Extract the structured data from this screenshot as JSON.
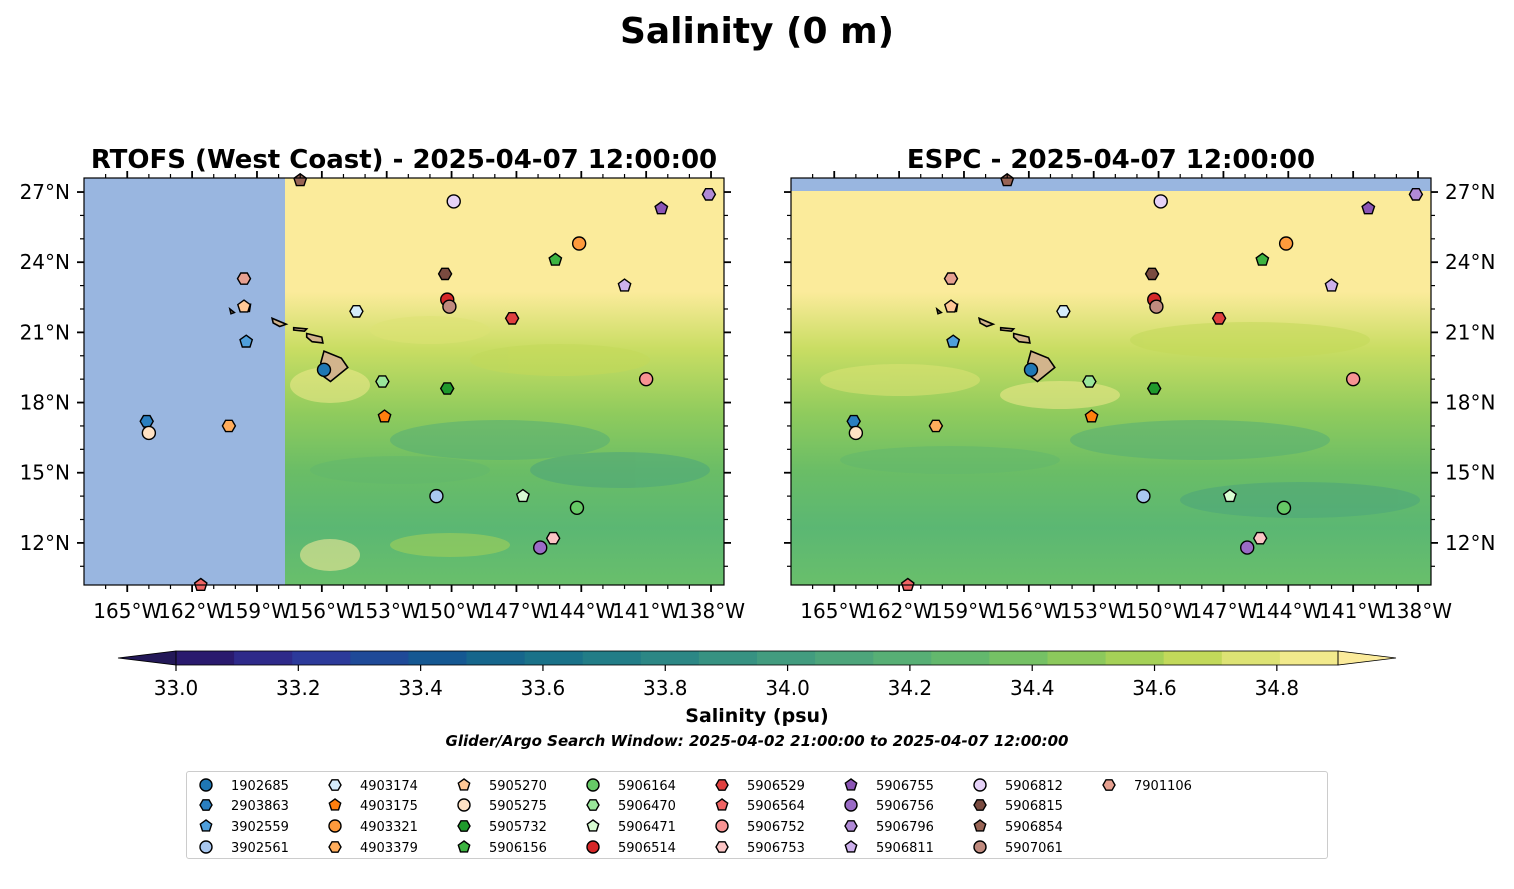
{
  "figure": {
    "suptitle": "Salinity (0 m)",
    "colorbar": {
      "label": "Salinity (psu)",
      "ticks": [
        "33.0",
        "33.2",
        "33.4",
        "33.6",
        "33.8",
        "34.0",
        "34.2",
        "34.4",
        "34.6",
        "34.8"
      ],
      "levels": [
        33.0,
        33.1,
        33.2,
        33.3,
        33.4,
        33.5,
        33.6,
        33.7,
        33.8,
        33.9,
        34.0,
        34.1,
        34.2,
        34.3,
        34.4,
        34.5,
        34.6,
        34.7,
        34.8,
        34.9
      ],
      "colors": [
        "#2a1a6e",
        "#2e2a8a",
        "#2c3a9a",
        "#1f4a98",
        "#155892",
        "#16668c",
        "#1a7289",
        "#227d87",
        "#2c8785",
        "#379282",
        "#429c7f",
        "#4da57b",
        "#57af75",
        "#63b86d",
        "#75c165",
        "#8cc95c",
        "#a5d157",
        "#c2d95a",
        "#dde374",
        "#f2ea8c"
      ],
      "under_color": "#231858",
      "over_color": "#fbeb9b"
    },
    "search_window": "Glider/Argo Search Window: 2025-04-02 21:00:00 to 2025-04-07 12:00:00"
  },
  "chart_data": [
    {
      "type": "scatter",
      "title": "RTOFS (West Coast) - 2025-04-07 12:00:00",
      "xlim": [
        -167,
        -137.4
      ],
      "ylim": [
        10.2,
        27.6
      ],
      "x_ticks": [
        "165°W",
        "162°W",
        "159°W",
        "156°W",
        "153°W",
        "150°W",
        "147°W",
        "144°W",
        "141°W",
        "138°W"
      ],
      "y_ticks": [
        "12°N",
        "15°N",
        "18°N",
        "21°N",
        "24°N",
        "27°N"
      ],
      "no_data_color": "#99b6e0",
      "no_data_west_of": -157.7,
      "points": [
        {
          "id": "1902685",
          "lon": -155.9,
          "lat": 19.4
        },
        {
          "id": "2903863",
          "lon": -164.1,
          "lat": 17.2
        },
        {
          "id": "3902559",
          "lon": -159.5,
          "lat": 20.6
        },
        {
          "id": "3902561",
          "lon": -150.7,
          "lat": 14.0
        },
        {
          "id": "4903174",
          "lon": -154.4,
          "lat": 21.9
        },
        {
          "id": "4903175",
          "lon": -153.1,
          "lat": 17.4
        },
        {
          "id": "4903321",
          "lon": -144.1,
          "lat": 24.8
        },
        {
          "id": "4903379",
          "lon": -160.3,
          "lat": 17.0
        },
        {
          "id": "5905270",
          "lon": -159.6,
          "lat": 22.1
        },
        {
          "id": "5905275",
          "lon": -164.0,
          "lat": 16.7
        },
        {
          "id": "5905732",
          "lon": -150.2,
          "lat": 18.6
        },
        {
          "id": "5906156",
          "lon": -145.2,
          "lat": 24.1
        },
        {
          "id": "5906164",
          "lon": -144.2,
          "lat": 13.5
        },
        {
          "id": "5906470",
          "lon": -153.2,
          "lat": 18.9
        },
        {
          "id": "5906471",
          "lon": -146.7,
          "lat": 14.0
        },
        {
          "id": "5906514",
          "lon": -150.2,
          "lat": 22.4
        },
        {
          "id": "5906529",
          "lon": -147.2,
          "lat": 21.6
        },
        {
          "id": "5906564",
          "lon": -161.6,
          "lat": 10.2
        },
        {
          "id": "5906752",
          "lon": -141.0,
          "lat": 19.0
        },
        {
          "id": "5906753",
          "lon": -145.3,
          "lat": 12.2
        },
        {
          "id": "5906755",
          "lon": -140.3,
          "lat": 26.3
        },
        {
          "id": "5906756",
          "lon": -145.9,
          "lat": 11.8
        },
        {
          "id": "5906796",
          "lon": -138.1,
          "lat": 26.9
        },
        {
          "id": "5906811",
          "lon": -142.0,
          "lat": 23.0
        },
        {
          "id": "5906812",
          "lon": -149.9,
          "lat": 26.6
        },
        {
          "id": "5906815",
          "lon": -150.3,
          "lat": 23.5
        },
        {
          "id": "5906854",
          "lon": -157.0,
          "lat": 27.5
        },
        {
          "id": "5907061",
          "lon": -150.1,
          "lat": 22.1
        },
        {
          "id": "7901106",
          "lon": -159.6,
          "lat": 23.3
        }
      ]
    },
    {
      "type": "scatter",
      "title": "ESPC - 2025-04-07 12:00:00",
      "xlim": [
        -167,
        -137.4
      ],
      "ylim": [
        10.2,
        27.6
      ],
      "x_ticks": [
        "165°W",
        "162°W",
        "159°W",
        "156°W",
        "153°W",
        "150°W",
        "147°W",
        "144°W",
        "141°W",
        "138°W"
      ],
      "y_ticks": [
        "12°N",
        "15°N",
        "18°N",
        "21°N",
        "24°N",
        "27°N"
      ],
      "no_data_color": "#99b6e0",
      "no_data_north_of": 27.1,
      "same_points_as_first": true
    }
  ],
  "legend": {
    "items": [
      {
        "id": "1902685",
        "marker": "circle",
        "color": "#1f77b4"
      },
      {
        "id": "2903863",
        "marker": "hexagon",
        "color": "#2a7fc0"
      },
      {
        "id": "3902559",
        "marker": "pentagon",
        "color": "#4f9fdb"
      },
      {
        "id": "3902561",
        "marker": "circle",
        "color": "#a9c8f0"
      },
      {
        "id": "4903174",
        "marker": "hexagon",
        "color": "#d5ecfb"
      },
      {
        "id": "4903175",
        "marker": "pentagon",
        "color": "#ff7f0e"
      },
      {
        "id": "4903321",
        "marker": "circle",
        "color": "#ff9a3c"
      },
      {
        "id": "4903379",
        "marker": "hexagon",
        "color": "#ffad5c"
      },
      {
        "id": "5905270",
        "marker": "pentagon",
        "color": "#ffc896"
      },
      {
        "id": "5905275",
        "marker": "circle",
        "color": "#ffe2c4"
      },
      {
        "id": "5905732",
        "marker": "hexagon",
        "color": "#1f9a2c"
      },
      {
        "id": "5906156",
        "marker": "pentagon",
        "color": "#3db441"
      },
      {
        "id": "5906164",
        "marker": "circle",
        "color": "#66c966"
      },
      {
        "id": "5906470",
        "marker": "hexagon",
        "color": "#9ae69a"
      },
      {
        "id": "5906471",
        "marker": "pentagon",
        "color": "#d8fcd2"
      },
      {
        "id": "5906514",
        "marker": "circle",
        "color": "#d62728"
      },
      {
        "id": "5906529",
        "marker": "hexagon",
        "color": "#e0403f"
      },
      {
        "id": "5906564",
        "marker": "pentagon",
        "color": "#f06464"
      },
      {
        "id": "5906752",
        "marker": "circle",
        "color": "#f79393"
      },
      {
        "id": "5906753",
        "marker": "hexagon",
        "color": "#fcc5c5"
      },
      {
        "id": "5906755",
        "marker": "pentagon",
        "color": "#8b55b5"
      },
      {
        "id": "5906756",
        "marker": "circle",
        "color": "#9a6bc6"
      },
      {
        "id": "5906796",
        "marker": "hexagon",
        "color": "#b08ad6"
      },
      {
        "id": "5906811",
        "marker": "pentagon",
        "color": "#cdb0ec"
      },
      {
        "id": "5906812",
        "marker": "circle",
        "color": "#e6d2f8"
      },
      {
        "id": "5906815",
        "marker": "hexagon",
        "color": "#7a4b40"
      },
      {
        "id": "5906854",
        "marker": "pentagon",
        "color": "#986455"
      },
      {
        "id": "5907061",
        "marker": "circle",
        "color": "#bf8a7e"
      },
      {
        "id": "7901106",
        "marker": "hexagon",
        "color": "#e6a090"
      }
    ]
  }
}
